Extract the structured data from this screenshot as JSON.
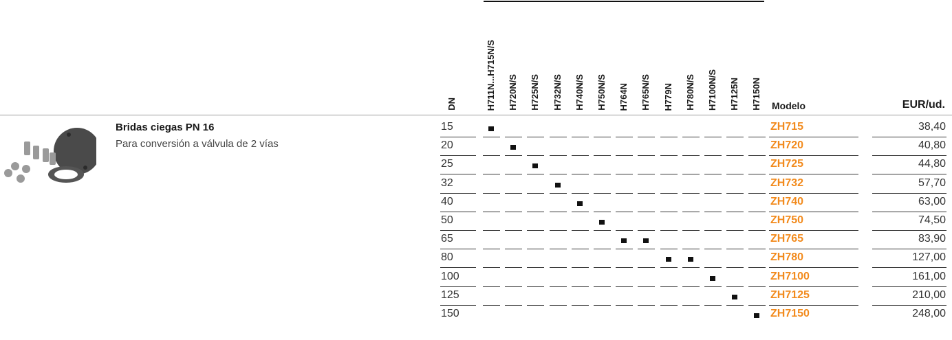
{
  "header": {
    "dn": "DN",
    "valves": [
      "H711N...H715N/S",
      "H720N/S",
      "H725N/S",
      "H732N/S",
      "H740N/S",
      "H750N/S",
      "H764N",
      "H765N/S",
      "H779N",
      "H780N/S",
      "H7100N/S",
      "H7125N",
      "H7150N"
    ],
    "model": "Modelo",
    "price": "EUR/ud."
  },
  "product": {
    "title": "Bridas ciegas PN 16",
    "description": "Para conversión a válvula de 2 vías"
  },
  "rows": [
    {
      "dn": 15,
      "model": "ZH715",
      "price": "38,40",
      "compatible": [
        true,
        false,
        false,
        false,
        false,
        false,
        false,
        false,
        false,
        false,
        false,
        false,
        false
      ]
    },
    {
      "dn": 20,
      "model": "ZH720",
      "price": "40,80",
      "compatible": [
        false,
        true,
        false,
        false,
        false,
        false,
        false,
        false,
        false,
        false,
        false,
        false,
        false
      ]
    },
    {
      "dn": 25,
      "model": "ZH725",
      "price": "44,80",
      "compatible": [
        false,
        false,
        true,
        false,
        false,
        false,
        false,
        false,
        false,
        false,
        false,
        false,
        false
      ]
    },
    {
      "dn": 32,
      "model": "ZH732",
      "price": "57,70",
      "compatible": [
        false,
        false,
        false,
        true,
        false,
        false,
        false,
        false,
        false,
        false,
        false,
        false,
        false
      ]
    },
    {
      "dn": 40,
      "model": "ZH740",
      "price": "63,00",
      "compatible": [
        false,
        false,
        false,
        false,
        true,
        false,
        false,
        false,
        false,
        false,
        false,
        false,
        false
      ]
    },
    {
      "dn": 50,
      "model": "ZH750",
      "price": "74,50",
      "compatible": [
        false,
        false,
        false,
        false,
        false,
        true,
        false,
        false,
        false,
        false,
        false,
        false,
        false
      ]
    },
    {
      "dn": 65,
      "model": "ZH765",
      "price": "83,90",
      "compatible": [
        false,
        false,
        false,
        false,
        false,
        false,
        true,
        true,
        false,
        false,
        false,
        false,
        false
      ]
    },
    {
      "dn": 80,
      "model": "ZH780",
      "price": "127,00",
      "compatible": [
        false,
        false,
        false,
        false,
        false,
        false,
        false,
        false,
        true,
        true,
        false,
        false,
        false
      ]
    },
    {
      "dn": 100,
      "model": "ZH7100",
      "price": "161,00",
      "compatible": [
        false,
        false,
        false,
        false,
        false,
        false,
        false,
        false,
        false,
        false,
        true,
        false,
        false
      ]
    },
    {
      "dn": 125,
      "model": "ZH7125",
      "price": "210,00",
      "compatible": [
        false,
        false,
        false,
        false,
        false,
        false,
        false,
        false,
        false,
        false,
        false,
        true,
        false
      ]
    },
    {
      "dn": 150,
      "model": "ZH7150",
      "price": "248,00",
      "compatible": [
        false,
        false,
        false,
        false,
        false,
        false,
        false,
        false,
        false,
        false,
        false,
        false,
        true
      ]
    }
  ]
}
